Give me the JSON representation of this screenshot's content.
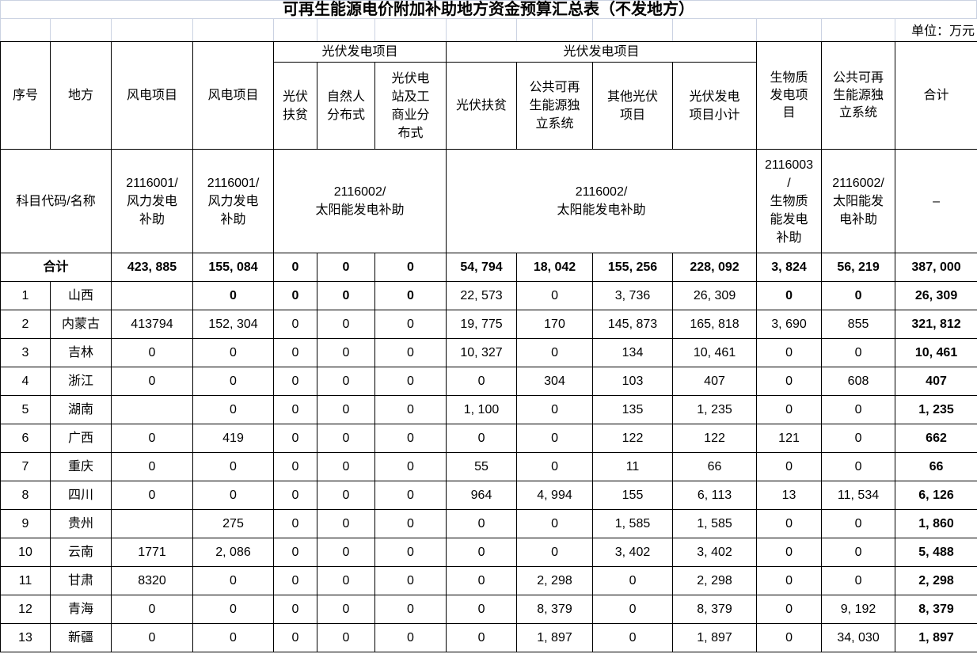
{
  "title": "可再生能源电价附加补助地方资金预算汇总表（不发地方）",
  "unit_label": "单位：万元",
  "table": {
    "col_headers": {
      "seq": "序号",
      "region": "地方",
      "wind1": "风电项目",
      "wind2": "风电项目",
      "pv_group1": "光伏发电项目",
      "pv_group2": "光伏发电项目",
      "g1_sub": [
        "光伏\n扶贫",
        "自然人\n分布式",
        "光伏电\n站及工\n商业分\n布式"
      ],
      "g2_sub": [
        "光伏扶贫",
        "公共可再\n生能源独\n立系统",
        "其他光伏\n项目",
        "光伏发电\n项目小计"
      ],
      "biomass": "生物质\n发电项\n目",
      "pub_renew": "公共可再\n生能源独\n立系统",
      "total": "合计"
    },
    "subject_row": {
      "label": "科目代码/名称",
      "wind1": "2116001/\n风力发电\n补助",
      "wind2": "2116001/\n风力发电\n补助",
      "solar1": "2116002/\n太阳能发电补助",
      "solar2": "2116002/\n太阳能发电补助",
      "biomass": "2116003\n/\n生物质\n能发电\n补助",
      "pub_renew": "2116002/\n太阳能发\n电补助",
      "total": "–"
    },
    "total_row": {
      "label": "合计",
      "values": [
        "423, 885",
        "155, 084",
        "0",
        "0",
        "0",
        "54, 794",
        "18, 042",
        "155, 256",
        "228, 092",
        "3, 824",
        "56, 219",
        "387, 000"
      ]
    },
    "rows": [
      {
        "idx": "1",
        "region": "山西",
        "values": [
          "",
          "0",
          "0",
          "0",
          "0",
          "22, 573",
          "0",
          "3, 736",
          "26, 309",
          "0",
          "0",
          "26, 309"
        ],
        "bold": [
          1,
          2,
          3,
          4,
          9,
          10
        ]
      },
      {
        "idx": "2",
        "region": "内蒙古",
        "values": [
          "413794",
          "152, 304",
          "0",
          "0",
          "0",
          "19, 775",
          "170",
          "145, 873",
          "165, 818",
          "3, 690",
          "855",
          "321, 812"
        ],
        "bold": []
      },
      {
        "idx": "3",
        "region": "吉林",
        "values": [
          "0",
          "0",
          "0",
          "0",
          "0",
          "10, 327",
          "0",
          "134",
          "10, 461",
          "0",
          "0",
          "10, 461"
        ],
        "bold": []
      },
      {
        "idx": "4",
        "region": "浙江",
        "values": [
          "0",
          "0",
          "0",
          "0",
          "0",
          "0",
          "304",
          "103",
          "407",
          "0",
          "608",
          "407"
        ],
        "bold": []
      },
      {
        "idx": "5",
        "region": "湖南",
        "values": [
          "",
          "0",
          "0",
          "0",
          "0",
          "1, 100",
          "0",
          "135",
          "1, 235",
          "0",
          "0",
          "1, 235"
        ],
        "bold": []
      },
      {
        "idx": "6",
        "region": "广西",
        "values": [
          "0",
          "419",
          "0",
          "0",
          "0",
          "0",
          "0",
          "122",
          "122",
          "121",
          "0",
          "662"
        ],
        "bold": []
      },
      {
        "idx": "7",
        "region": "重庆",
        "values": [
          "0",
          "0",
          "0",
          "0",
          "0",
          "55",
          "0",
          "11",
          "66",
          "0",
          "0",
          "66"
        ],
        "bold": []
      },
      {
        "idx": "8",
        "region": "四川",
        "values": [
          "0",
          "0",
          "0",
          "0",
          "0",
          "964",
          "4, 994",
          "155",
          "6, 113",
          "13",
          "11, 534",
          "6, 126"
        ],
        "bold": []
      },
      {
        "idx": "9",
        "region": "贵州",
        "values": [
          "",
          "275",
          "0",
          "0",
          "0",
          "0",
          "0",
          "1, 585",
          "1, 585",
          "0",
          "0",
          "1, 860"
        ],
        "bold": []
      },
      {
        "idx": "10",
        "region": "云南",
        "values": [
          "1771",
          "2, 086",
          "0",
          "0",
          "0",
          "0",
          "0",
          "3, 402",
          "3, 402",
          "0",
          "0",
          "5, 488"
        ],
        "bold": []
      },
      {
        "idx": "11",
        "region": "甘肃",
        "values": [
          "8320",
          "0",
          "0",
          "0",
          "0",
          "0",
          "2, 298",
          "0",
          "2, 298",
          "0",
          "0",
          "2, 298"
        ],
        "bold": []
      },
      {
        "idx": "12",
        "region": "青海",
        "values": [
          "0",
          "0",
          "0",
          "0",
          "0",
          "0",
          "8, 379",
          "0",
          "8, 379",
          "0",
          "9, 192",
          "8, 379"
        ],
        "bold": []
      },
      {
        "idx": "13",
        "region": "新疆",
        "values": [
          "0",
          "0",
          "0",
          "0",
          "0",
          "0",
          "1, 897",
          "0",
          "1, 897",
          "0",
          "34, 030",
          "1, 897"
        ],
        "bold": []
      }
    ]
  }
}
